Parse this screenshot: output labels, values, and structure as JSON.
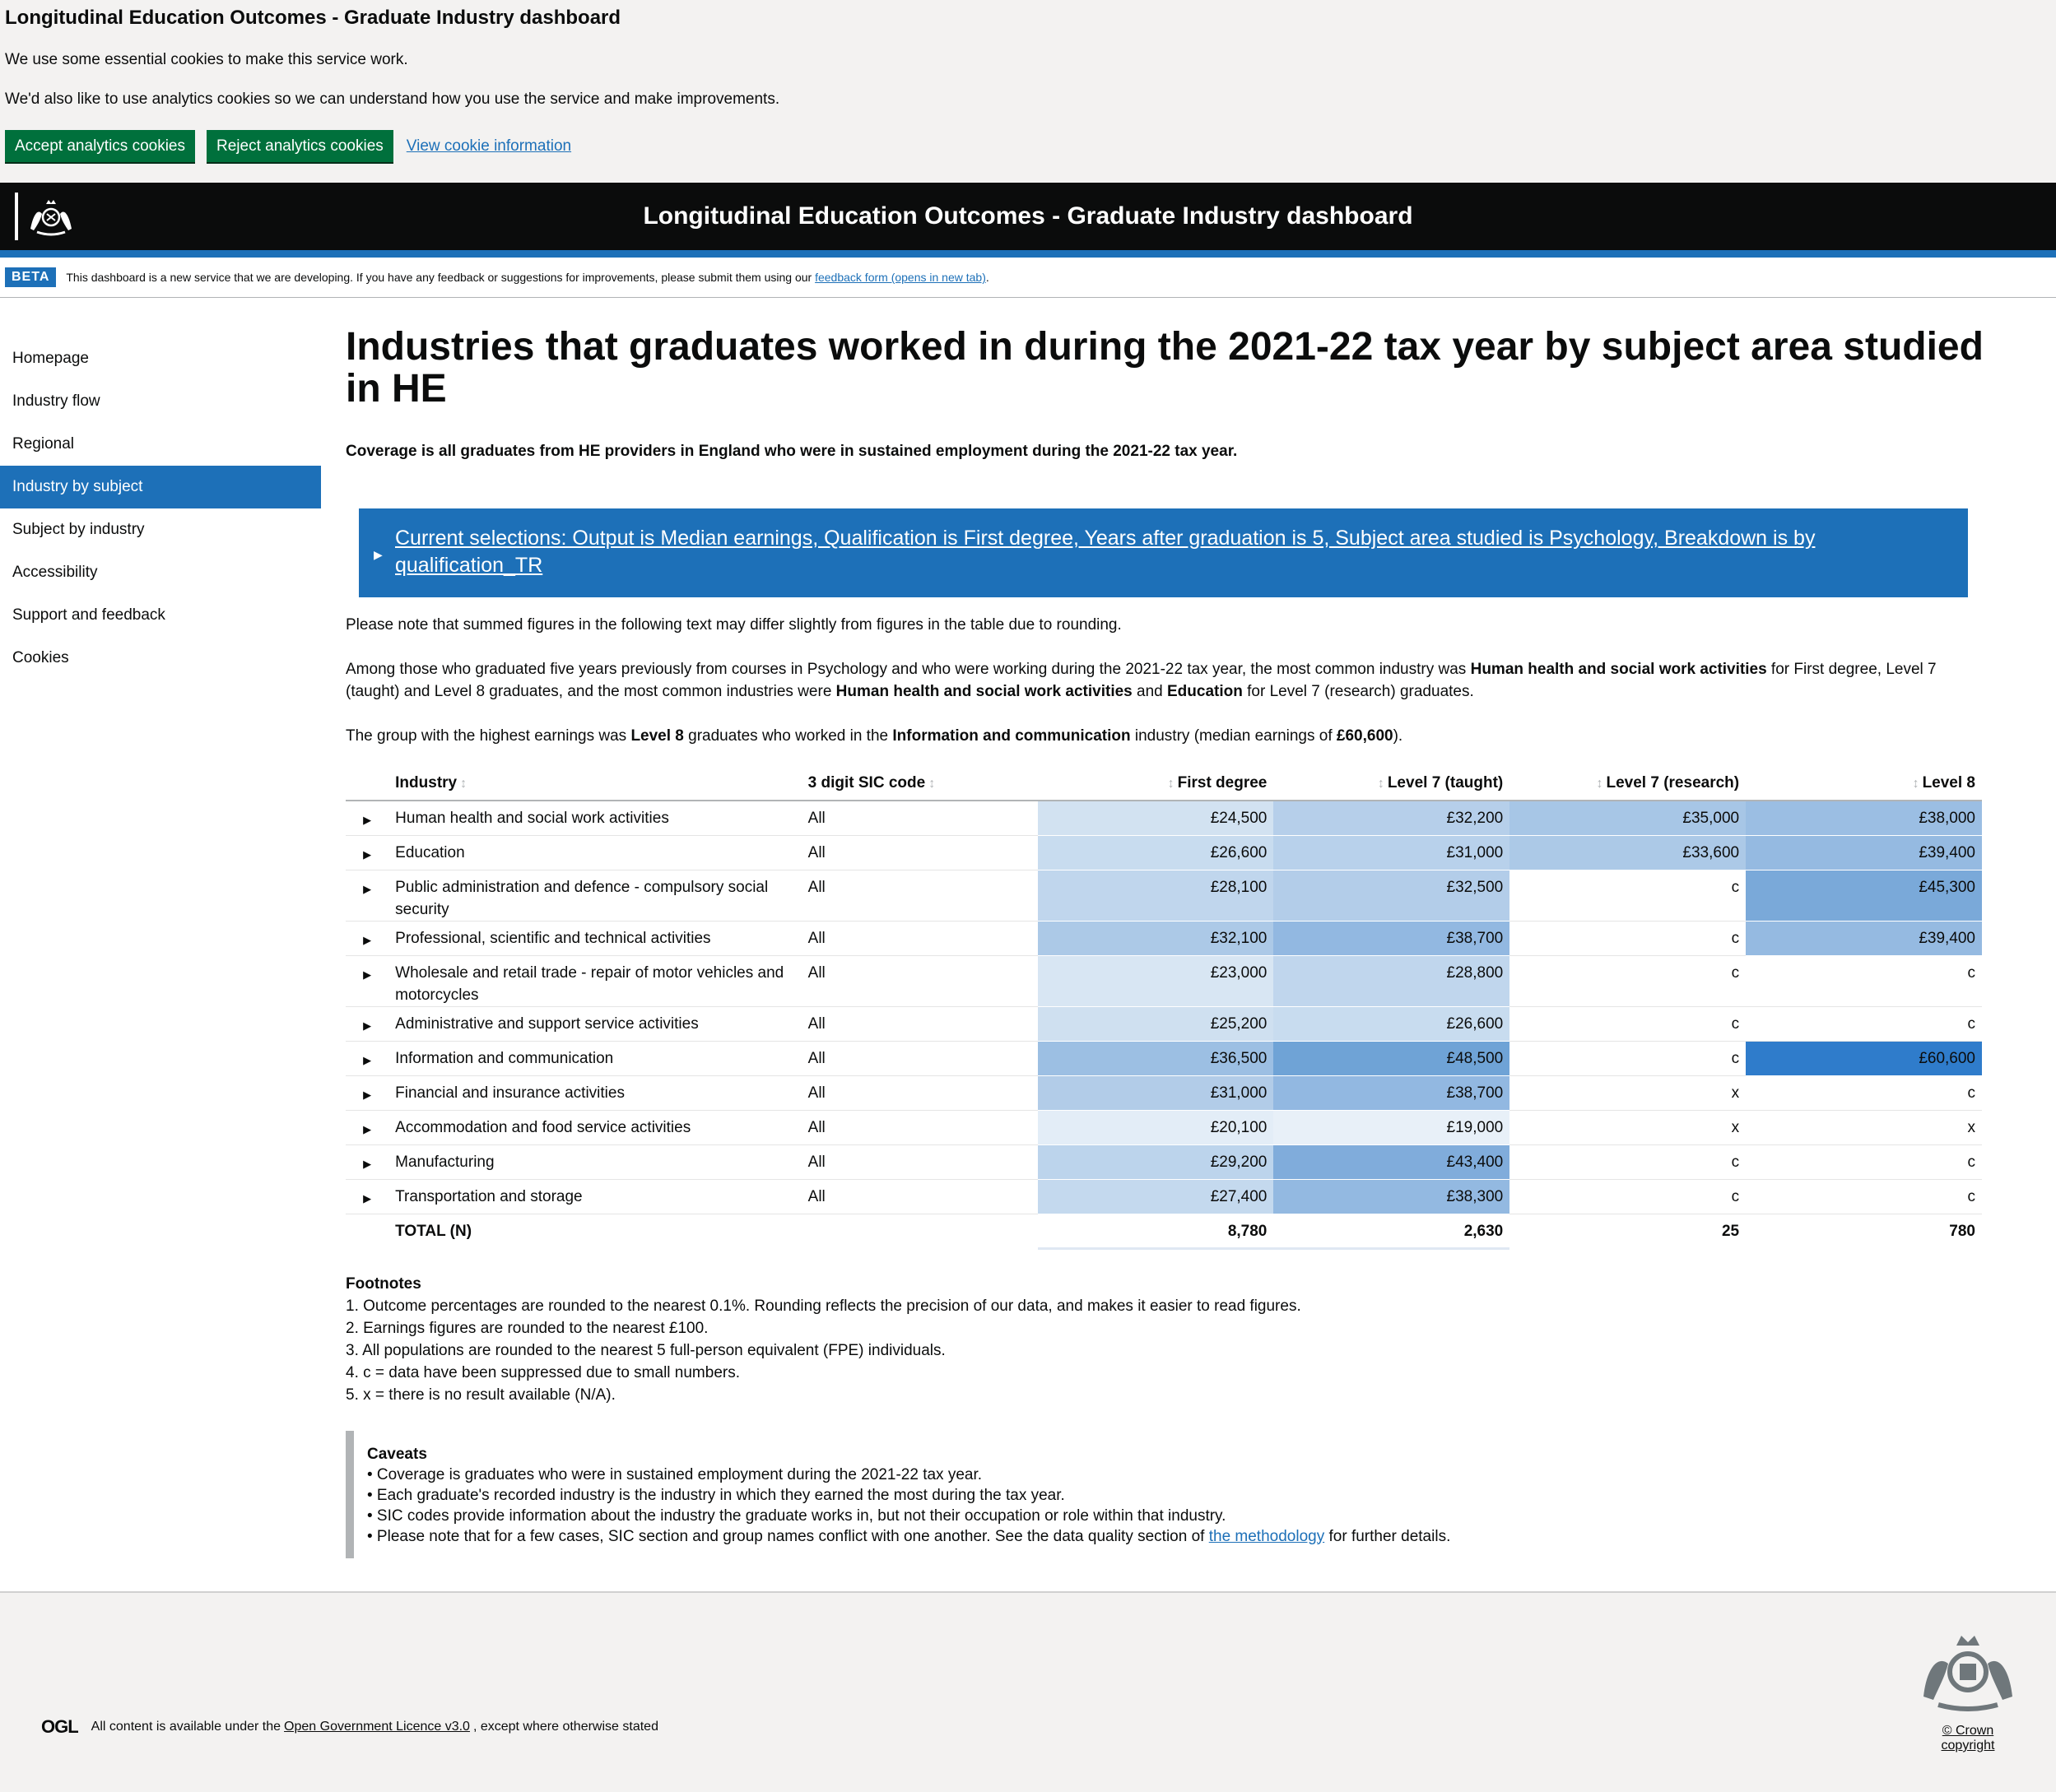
{
  "cookie": {
    "title": "Longitudinal Education Outcomes - Graduate Industry dashboard",
    "line1": "We use some essential cookies to make this service work.",
    "line2": "We'd also like to use analytics cookies so we can understand how you use the service and make improvements.",
    "accept": "Accept analytics cookies",
    "reject": "Reject analytics cookies",
    "view": "View cookie information"
  },
  "header": {
    "title": "Longitudinal Education Outcomes - Graduate Industry dashboard"
  },
  "beta": {
    "tag": "BETA",
    "text": "This dashboard is a new service that we are developing. If you have any feedback or suggestions for improvements, please submit them using our ",
    "link": "feedback form (opens in new tab)",
    "end": "."
  },
  "nav": {
    "items": [
      {
        "label": "Homepage"
      },
      {
        "label": "Industry flow"
      },
      {
        "label": "Regional"
      },
      {
        "label": "Industry by subject"
      },
      {
        "label": "Subject by industry"
      },
      {
        "label": "Accessibility"
      },
      {
        "label": "Support and feedback"
      },
      {
        "label": "Cookies"
      }
    ],
    "active": "Industry by subject"
  },
  "main": {
    "title": "Industries that graduates worked in during the 2021-22 tax year by subject area studied in HE",
    "coverage": "Coverage is all graduates from HE providers in England who were in sustained employment during the 2021-22 tax year.",
    "selections": "Current selections: Output is Median earnings, Qualification is First degree, Years after graduation is 5, Subject area studied is Psychology, Breakdown is by qualification_TR",
    "note": "Please note that summed figures in the following text may differ slightly from figures in the table due to rounding.",
    "para1": {
      "a": "Among those who graduated five years previously from courses in Psychology and who were working during the 2021-22 tax year, the most common industry was ",
      "b": "Human health and social work activities",
      "c": " for First degree, Level 7 (taught) and Level 8 graduates, and the most common industries were ",
      "d": "Human health and social work activities",
      "e": " and ",
      "f": "Education",
      "g": " for Level 7 (research) graduates."
    },
    "para2": {
      "a": "The group with the highest earnings was ",
      "b": "Level 8",
      "c": " graduates who worked in the ",
      "d": "Information and communication",
      "e": " industry (median earnings of ",
      "f": "£60,600",
      "g": ")."
    }
  },
  "table": {
    "headers": {
      "industry": "Industry",
      "sic": "3 digit SIC code",
      "fd": "First degree",
      "l7t": "Level 7 (taught)",
      "l7r": "Level 7 (research)",
      "l8": "Level 8"
    },
    "rows": [
      {
        "industry": "Human health and social work activities",
        "sic": "All",
        "fd": "£24,500",
        "l7t": "£32,200",
        "l7r": "£35,000",
        "l8": "£38,000",
        "fd_bg": "#d2e2f1",
        "l7t_bg": "#b6cfea",
        "l7r_bg": "#a7c6e6",
        "l8_bg": "#9bbee3"
      },
      {
        "industry": "Education",
        "sic": "All",
        "fd": "£26,600",
        "l7t": "£31,000",
        "l7r": "£33,600",
        "l8": "£39,400",
        "fd_bg": "#c8dcef",
        "l7t_bg": "#b8d1eb",
        "l7r_bg": "#acc9e7",
        "l8_bg": "#95bae1"
      },
      {
        "industry": "Public administration and defence - compulsory social security",
        "sic": "All",
        "fd": "£28,100",
        "l7t": "£32,500",
        "l7r": "c",
        "l8": "£45,300",
        "fd_bg": "#c0d6ed",
        "l7t_bg": "#b3cde9",
        "l7r_bg": "#ffffff",
        "l8_bg": "#7aa9d9"
      },
      {
        "industry": "Professional, scientific and technical activities",
        "sic": "All",
        "fd": "£32,100",
        "l7t": "£38,700",
        "l7r": "c",
        "l8": "£39,400",
        "fd_bg": "#acc9e7",
        "l7t_bg": "#92b8e1",
        "l7r_bg": "#ffffff",
        "l8_bg": "#95bae1"
      },
      {
        "industry": "Wholesale and retail trade - repair of motor vehicles and motorcycles",
        "sic": "All",
        "fd": "£23,000",
        "l7t": "£28,800",
        "l7r": "c",
        "l8": "c",
        "fd_bg": "#d8e6f3",
        "l7t_bg": "#c0d6ed",
        "l7r_bg": "#ffffff",
        "l8_bg": "#ffffff"
      },
      {
        "industry": "Administrative and support service activities",
        "sic": "All",
        "fd": "£25,200",
        "l7t": "£26,600",
        "l7r": "c",
        "l8": "c",
        "fd_bg": "#cfe0f0",
        "l7t_bg": "#c8dcef",
        "l7r_bg": "#ffffff",
        "l8_bg": "#ffffff"
      },
      {
        "industry": "Information and communication",
        "sic": "All",
        "fd": "£36,500",
        "l7t": "£48,500",
        "l7r": "c",
        "l8": "£60,600",
        "fd_bg": "#9cbfe3",
        "l7t_bg": "#6fa3d6",
        "l7r_bg": "#ffffff",
        "l8_bg": "#2f7ccb"
      },
      {
        "industry": "Financial and insurance activities",
        "sic": "All",
        "fd": "£31,000",
        "l7t": "£38,700",
        "l7r": "x",
        "l8": "c",
        "fd_bg": "#b2cce8",
        "l7t_bg": "#92b8e1",
        "l7r_bg": "#ffffff",
        "l8_bg": "#ffffff"
      },
      {
        "industry": "Accommodation and food service activities",
        "sic": "All",
        "fd": "£20,100",
        "l7t": "£19,000",
        "l7r": "x",
        "l8": "x",
        "fd_bg": "#e3edf7",
        "l7t_bg": "#e8f0f8",
        "l7r_bg": "#ffffff",
        "l8_bg": "#ffffff"
      },
      {
        "industry": "Manufacturing",
        "sic": "All",
        "fd": "£29,200",
        "l7t": "£43,400",
        "l7r": "c",
        "l8": "c",
        "fd_bg": "#bcd4ec",
        "l7t_bg": "#80acdb",
        "l7r_bg": "#ffffff",
        "l8_bg": "#ffffff"
      },
      {
        "industry": "Transportation and storage",
        "sic": "All",
        "fd": "£27,400",
        "l7t": "£38,300",
        "l7r": "c",
        "l8": "c",
        "fd_bg": "#c4d9ee",
        "l7t_bg": "#93b9e1",
        "l7r_bg": "#ffffff",
        "l8_bg": "#ffffff"
      }
    ],
    "total": {
      "label": "TOTAL (N)",
      "fd": "8,780",
      "l7t": "2,630",
      "l7r": "25",
      "l8": "780"
    }
  },
  "footnotes": {
    "title": "Footnotes",
    "items": [
      "1. Outcome percentages are rounded to the nearest 0.1%. Rounding reflects the precision of our data, and makes it easier to read figures.",
      "2. Earnings figures are rounded to the nearest £100.",
      "3. All populations are rounded to the nearest 5 full-person equivalent (FPE) individuals.",
      "4. c = data have been suppressed due to small numbers.",
      "5. x = there is no result available (N/A)."
    ]
  },
  "caveats": {
    "title": "Caveats",
    "items": [
      "• Coverage is graduates who were in sustained employment during the 2021-22 tax year.",
      "• Each graduate's recorded industry is the industry in which they earned the most during the tax year.",
      "• SIC codes provide information about the industry the graduate works in, but not their occupation or role within that industry."
    ],
    "last_a": "• Please note that for a few cases, SIC section and group names conflict with one another. See the data quality section of ",
    "last_link": "the methodology",
    "last_b": " for further details."
  },
  "footer": {
    "ogl_logo": "OGL",
    "ogl_a": "All content is available under the",
    "ogl_link": "Open Government Licence v3.0",
    "ogl_b": ", except where otherwise stated",
    "crown": "© Crown copyright"
  },
  "icons": {
    "crest": "royal-coat-of-arms-icon",
    "expand": "triangle-right-icon",
    "sort": "sort-arrows-icon"
  },
  "colors": {
    "brand_blue": "#1d70b8",
    "cookie_button": "#00703c",
    "header_bg": "#0b0c0c"
  }
}
